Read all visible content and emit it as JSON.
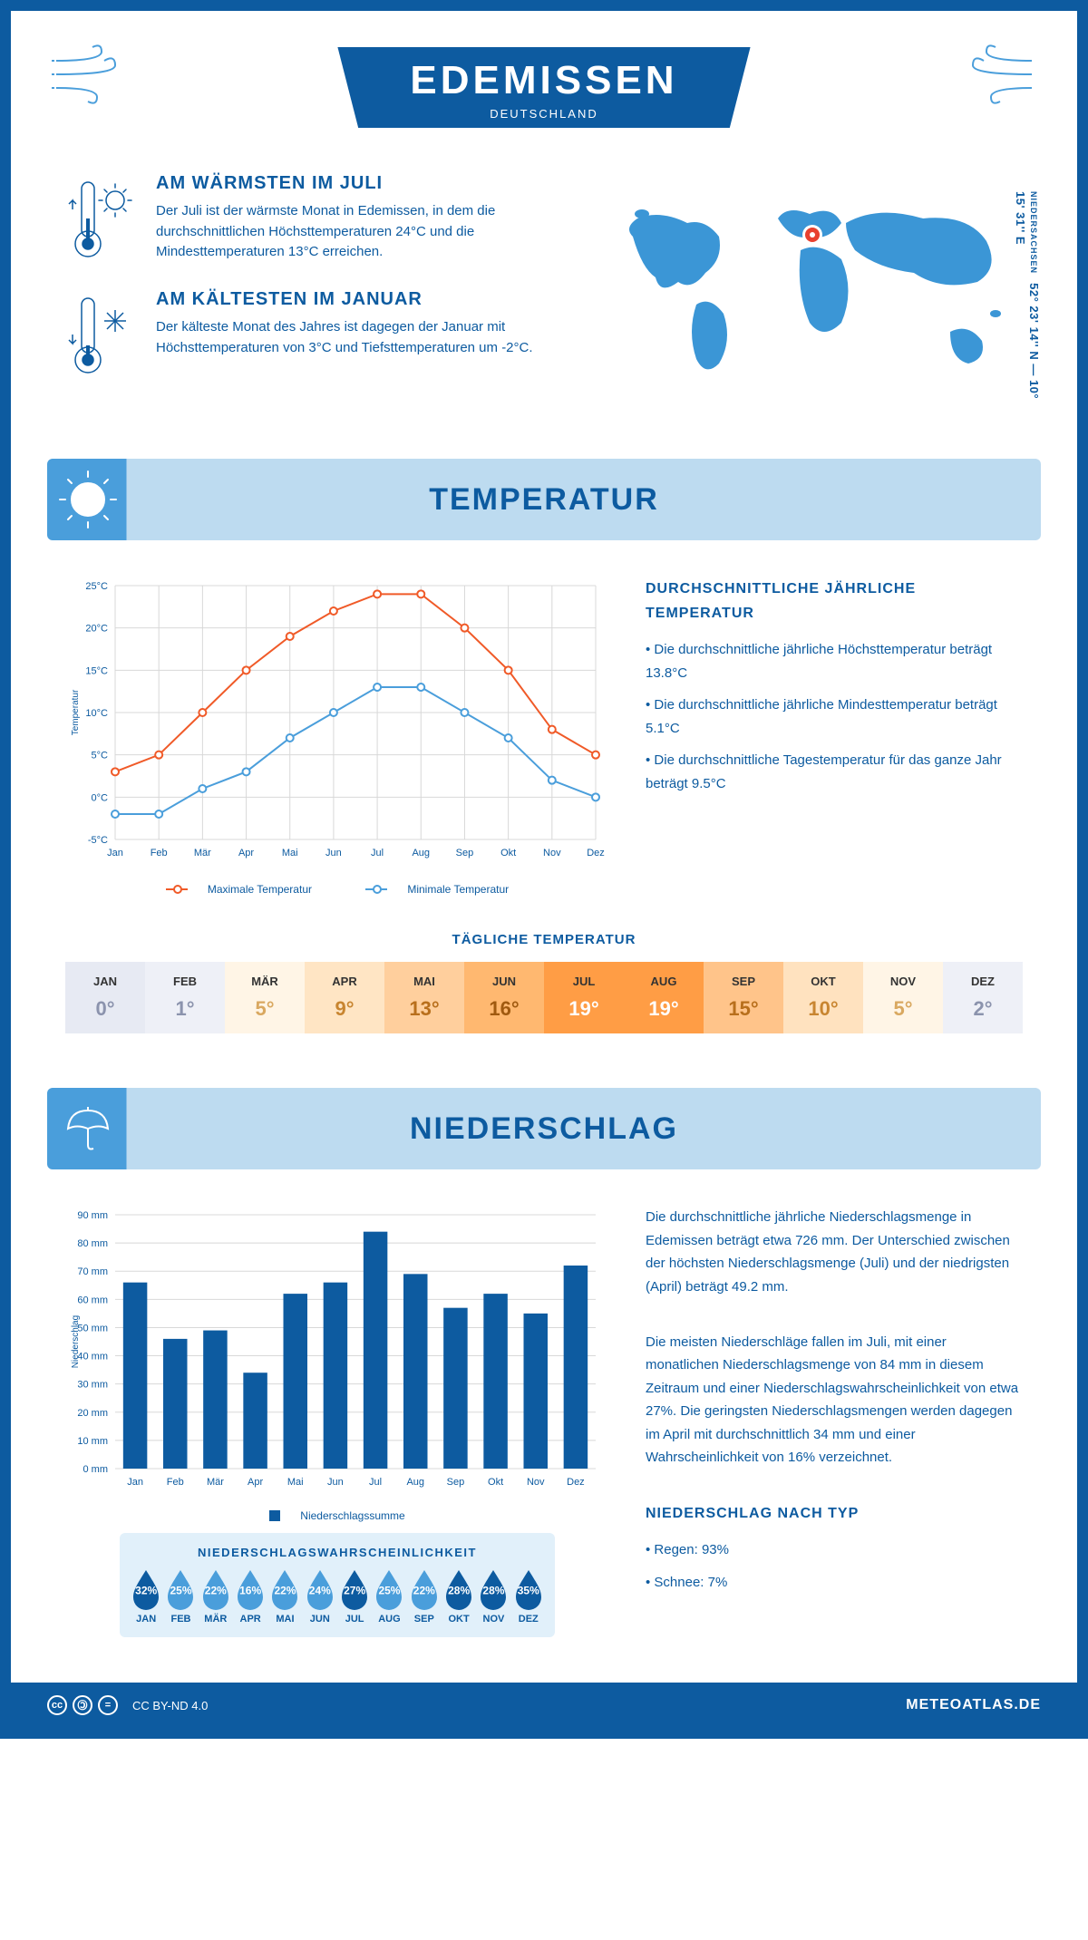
{
  "header": {
    "city": "EDEMISSEN",
    "country": "DEUTSCHLAND"
  },
  "coords": {
    "region": "NIEDERSACHSEN",
    "text": "52° 23' 14'' N — 10° 15' 31'' E"
  },
  "warm": {
    "title": "AM WÄRMSTEN IM JULI",
    "text": "Der Juli ist der wärmste Monat in Edemissen, in dem die durchschnittlichen Höchsttemperaturen 24°C und die Mindesttemperaturen 13°C erreichen."
  },
  "cold": {
    "title": "AM KÄLTESTEN IM JANUAR",
    "text": "Der kälteste Monat des Jahres ist dagegen der Januar mit Höchsttemperaturen von 3°C und Tiefsttemperaturen um -2°C."
  },
  "temp_section": {
    "title": "TEMPERATUR"
  },
  "temp_chart": {
    "months": [
      "Jan",
      "Feb",
      "Mär",
      "Apr",
      "Mai",
      "Jun",
      "Jul",
      "Aug",
      "Sep",
      "Okt",
      "Nov",
      "Dez"
    ],
    "max": [
      3,
      5,
      10,
      15,
      19,
      22,
      24,
      24,
      20,
      15,
      8,
      5
    ],
    "min": [
      -2,
      -2,
      1,
      3,
      7,
      10,
      13,
      13,
      10,
      7,
      2,
      0
    ],
    "max_color": "#f05a28",
    "min_color": "#4a9edb",
    "ylim": [
      -5,
      25
    ],
    "ytick_step": 5,
    "ylabel": "Temperatur",
    "legend_max": "Maximale Temperatur",
    "legend_min": "Minimale Temperatur",
    "grid_color": "#d8d8d8"
  },
  "temp_info": {
    "title": "DURCHSCHNITTLICHE JÄHRLICHE TEMPERATUR",
    "lines": [
      "• Die durchschnittliche jährliche Höchsttemperatur beträgt 13.8°C",
      "• Die durchschnittliche jährliche Mindesttemperatur beträgt 5.1°C",
      "• Die durchschnittliche Tagestemperatur für das ganze Jahr beträgt 9.5°C"
    ]
  },
  "daily": {
    "title": "TÄGLICHE TEMPERATUR",
    "months": [
      "JAN",
      "FEB",
      "MÄR",
      "APR",
      "MAI",
      "JUN",
      "JUL",
      "AUG",
      "SEP",
      "OKT",
      "NOV",
      "DEZ"
    ],
    "values": [
      "0°",
      "1°",
      "5°",
      "9°",
      "13°",
      "16°",
      "19°",
      "19°",
      "15°",
      "10°",
      "5°",
      "2°"
    ],
    "bg_colors": [
      "#e7eaf3",
      "#eef0f7",
      "#fff5e6",
      "#ffe5c4",
      "#ffcf9d",
      "#ffb870",
      "#ff9d45",
      "#ff9d45",
      "#ffc48a",
      "#ffe2bf",
      "#fff5e6",
      "#eef0f7"
    ],
    "text_colors": [
      "#8b93ad",
      "#8b93ad",
      "#d9a860",
      "#c88530",
      "#b86f1c",
      "#a05a10",
      "#fff",
      "#fff",
      "#b86f1c",
      "#c88530",
      "#d9a860",
      "#8b93ad"
    ]
  },
  "precip_section": {
    "title": "NIEDERSCHLAG"
  },
  "precip_chart": {
    "months": [
      "Jan",
      "Feb",
      "Mär",
      "Apr",
      "Mai",
      "Jun",
      "Jul",
      "Aug",
      "Sep",
      "Okt",
      "Nov",
      "Dez"
    ],
    "values": [
      66,
      46,
      49,
      34,
      62,
      66,
      84,
      69,
      57,
      62,
      55,
      72
    ],
    "bar_color": "#0d5ba0",
    "ylim": [
      0,
      90
    ],
    "ytick_step": 10,
    "ylabel": "Niederschlag",
    "legend": "Niederschlagssumme",
    "grid_color": "#d8d8d8"
  },
  "precip_info": {
    "p1": "Die durchschnittliche jährliche Niederschlagsmenge in Edemissen beträgt etwa 726 mm. Der Unterschied zwischen der höchsten Niederschlagsmenge (Juli) und der niedrigsten (April) beträgt 49.2 mm.",
    "p2": "Die meisten Niederschläge fallen im Juli, mit einer monatlichen Niederschlagsmenge von 84 mm in diesem Zeitraum und einer Niederschlagswahrscheinlichkeit von etwa 27%. Die geringsten Niederschlagsmengen werden dagegen im April mit durchschnittlich 34 mm und einer Wahrscheinlichkeit von 16% verzeichnet.",
    "type_title": "NIEDERSCHLAG NACH TYP",
    "type1": "• Regen: 93%",
    "type2": "• Schnee: 7%"
  },
  "prob": {
    "title": "NIEDERSCHLAGSWAHRSCHEINLICHKEIT",
    "months": [
      "JAN",
      "FEB",
      "MÄR",
      "APR",
      "MAI",
      "JUN",
      "JUL",
      "AUG",
      "SEP",
      "OKT",
      "NOV",
      "DEZ"
    ],
    "values": [
      "32%",
      "25%",
      "22%",
      "16%",
      "22%",
      "24%",
      "27%",
      "25%",
      "22%",
      "28%",
      "28%",
      "35%"
    ],
    "colors": [
      "#0d5ba0",
      "#4a9edb",
      "#4a9edb",
      "#4a9edb",
      "#4a9edb",
      "#4a9edb",
      "#0d5ba0",
      "#4a9edb",
      "#4a9edb",
      "#0d5ba0",
      "#0d5ba0",
      "#0d5ba0"
    ]
  },
  "footer": {
    "license": "CC BY-ND 4.0",
    "site": "METEOATLAS.DE"
  }
}
